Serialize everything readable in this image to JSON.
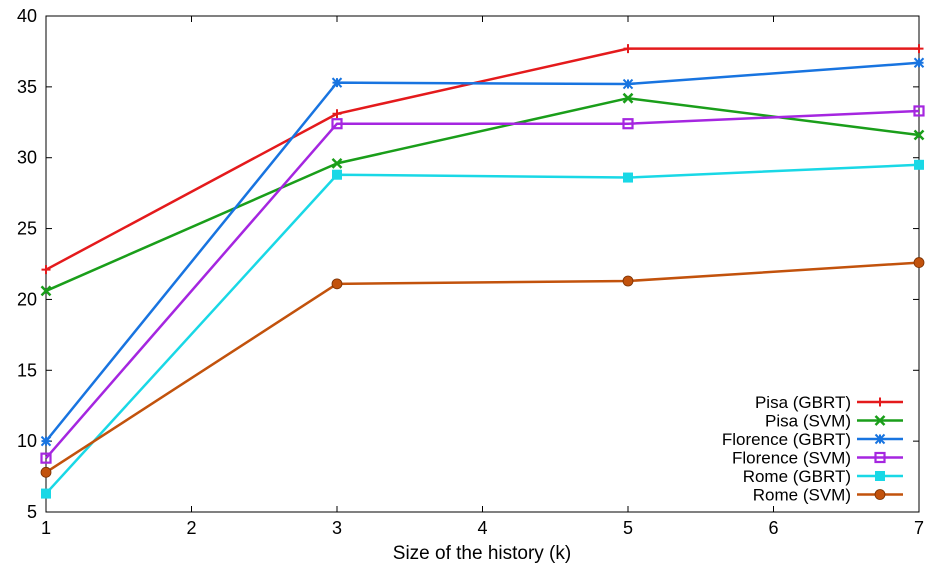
{
  "chart_data": {
    "type": "line",
    "title": "",
    "xlabel": "Size of the history (k)",
    "ylabel": "",
    "xlim": [
      1,
      7
    ],
    "ylim": [
      5,
      40
    ],
    "xticks": [
      1,
      2,
      3,
      4,
      5,
      6,
      7
    ],
    "yticks": [
      5,
      10,
      15,
      20,
      25,
      30,
      35,
      40
    ],
    "grid": false,
    "legend_position": "bottom-right",
    "x": [
      1,
      3,
      5,
      7
    ],
    "series": [
      {
        "name": "Pisa (GBRT)",
        "color": "#e41a1c",
        "marker": "plus",
        "values": [
          22.1,
          33.1,
          37.7,
          37.7
        ]
      },
      {
        "name": "Pisa (SVM)",
        "color": "#1a9e1a",
        "marker": "cross",
        "values": [
          20.6,
          29.6,
          34.2,
          31.6
        ]
      },
      {
        "name": "Florence (GBRT)",
        "color": "#1874e0",
        "marker": "star",
        "values": [
          10.0,
          35.3,
          35.2,
          36.7
        ]
      },
      {
        "name": "Florence (SVM)",
        "color": "#a526e0",
        "marker": "square-open",
        "values": [
          8.8,
          32.4,
          32.4,
          33.3
        ]
      },
      {
        "name": "Rome (GBRT)",
        "color": "#19d8e6",
        "marker": "square",
        "values": [
          6.3,
          28.8,
          28.6,
          29.5
        ]
      },
      {
        "name": "Rome (SVM)",
        "color": "#c2520c",
        "marker": "circle",
        "values": [
          7.8,
          21.1,
          21.3,
          22.6
        ]
      }
    ]
  }
}
